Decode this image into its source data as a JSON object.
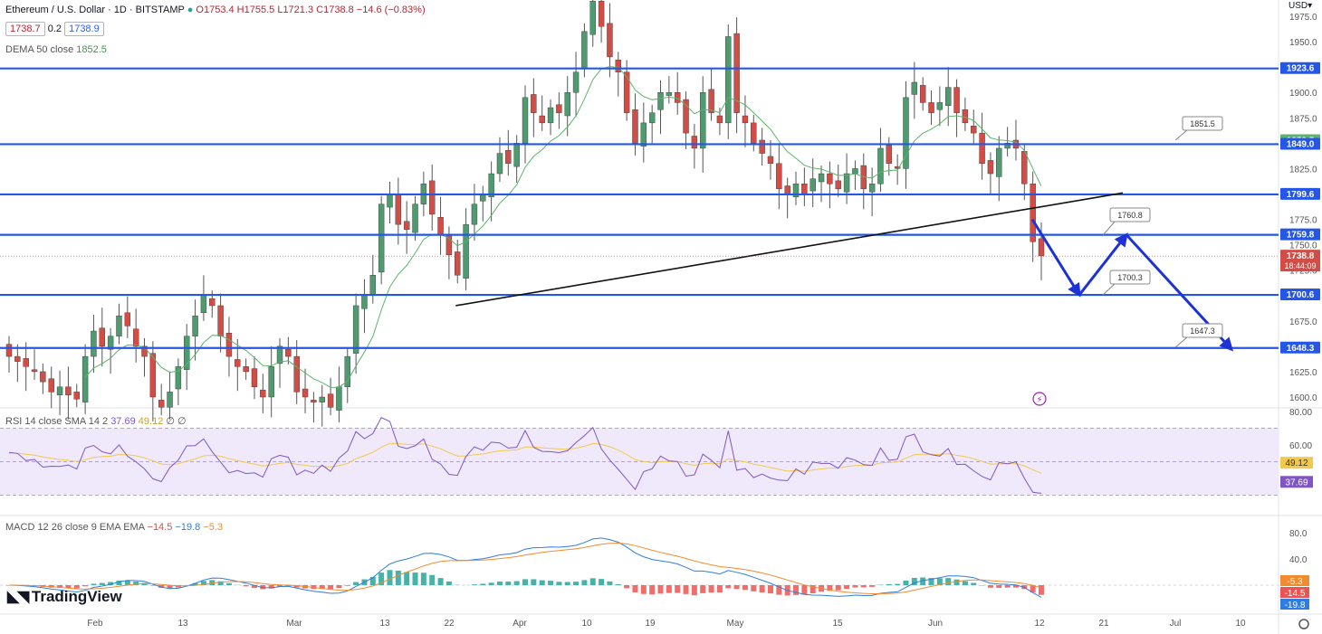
{
  "header": {
    "symbol": "Ethereum / U.S. Dollar · 1D · BITSTAMP",
    "ohlc": "O1753.4  H1755.5  L1721.3  C1738.8  −14.6 (−0.83%)",
    "bid": "1738.7",
    "spread": "0.2",
    "ask": "1738.9",
    "dema_label": "DEMA 50 close",
    "dema_value": "1852.5",
    "currency": "USD"
  },
  "rsi_legend": {
    "label": "RSI 14 close SMA 14 2",
    "rsi": "37.69",
    "sma": "49.12",
    "extra": "∅ ∅"
  },
  "macd_legend": {
    "label": "MACD 12 26 close 9 EMA EMA",
    "hist": "−14.5",
    "macd": "−19.8",
    "signal": "−5.3"
  },
  "branding": {
    "logo": "TradingView"
  },
  "colors": {
    "up": "#4f9a6f",
    "down": "#d24d45",
    "level": "#2457e8",
    "arrow": "#1d33d6",
    "dema": "#5db36b",
    "rsi": "#7e57c2",
    "rsi_sma": "#f2c94c",
    "macd": "#2f7de1",
    "signal": "#f28b2f"
  },
  "chart_data": [
    {
      "type": "candlestick",
      "title": "Ethereum / U.S. Dollar · 1D · BITSTAMP",
      "ylim": [
        1590,
        1980
      ],
      "y_ticks": [
        "1975.0",
        "1950.0",
        "1925.0",
        "1900.0",
        "1875.0",
        "1850.0",
        "1825.0",
        "1800.0",
        "1775.0",
        "1750.0",
        "1725.0",
        "1700.0",
        "1675.0",
        "1650.0",
        "1625.0",
        "1600.0"
      ],
      "x_ticks": [
        "Feb",
        "13",
        "Mar",
        "13",
        "22",
        "Apr",
        "10",
        "19",
        "May",
        "15",
        "Jun",
        "12",
        "21",
        "Jul",
        "10"
      ],
      "close_series": [
        1640,
        1635,
        1630,
        1625,
        1615,
        1605,
        1610,
        1602,
        1598,
        1640,
        1665,
        1650,
        1660,
        1680,
        1670,
        1650,
        1640,
        1600,
        1590,
        1605,
        1630,
        1660,
        1680,
        1700,
        1690,
        1660,
        1640,
        1630,
        1625,
        1610,
        1600,
        1630,
        1650,
        1640,
        1605,
        1600,
        1595,
        1600,
        1590,
        1610,
        1640,
        1690,
        1700,
        1720,
        1790,
        1800,
        1770,
        1765,
        1790,
        1810,
        1780,
        1760,
        1740,
        1720,
        1770,
        1790,
        1800,
        1820,
        1840,
        1830,
        1850,
        1895,
        1880,
        1870,
        1885,
        1880,
        1900,
        1920,
        1960,
        1990,
        1965,
        1935,
        1920,
        1880,
        1850,
        1870,
        1880,
        1900,
        1900,
        1890,
        1860,
        1845,
        1900,
        1880,
        1870,
        1955,
        1880,
        1870,
        1850,
        1840,
        1830,
        1805,
        1800,
        1810,
        1800,
        1815,
        1820,
        1810,
        1805,
        1820,
        1825,
        1805,
        1810,
        1845,
        1830,
        1825,
        1895,
        1910,
        1890,
        1880,
        1890,
        1905,
        1880,
        1870,
        1860,
        1830,
        1820,
        1845,
        1850,
        1845,
        1810,
        1753,
        1739
      ],
      "levels": [
        1923.6,
        1849.0,
        1799.6,
        1759.8,
        1700.6,
        1648.3
      ],
      "current_price": "1738.8",
      "countdown": "18:44:09",
      "price_labels": [
        "1923.6",
        "1852.5",
        "1849.0",
        "1799.6",
        "1759.8",
        "1738.8",
        "1700.6",
        "1648.3"
      ],
      "callouts": [
        "1851.5",
        "1760.8",
        "1700.3",
        "1647.3"
      ]
    },
    {
      "type": "line",
      "title": "RSI 14 close SMA 14 2",
      "ylim": [
        20,
        80
      ],
      "y_ticks": [
        "80.00",
        "60.00"
      ],
      "series": [
        {
          "name": "RSI",
          "last": "37.69"
        },
        {
          "name": "RSI SMA",
          "last": "49.12"
        }
      ],
      "value_labels": [
        "49.12",
        "37.69"
      ]
    },
    {
      "type": "line",
      "title": "MACD 12 26 close 9 EMA EMA",
      "ylim": [
        -40,
        100
      ],
      "y_ticks": [
        "80.0",
        "40.0"
      ],
      "series": [
        {
          "name": "MACD",
          "last": "-19.8"
        },
        {
          "name": "Signal",
          "last": "-5.3"
        },
        {
          "name": "Histogram",
          "last": "-14.5"
        }
      ],
      "value_labels": [
        "-5.3",
        "-14.5",
        "-19.8"
      ]
    }
  ]
}
